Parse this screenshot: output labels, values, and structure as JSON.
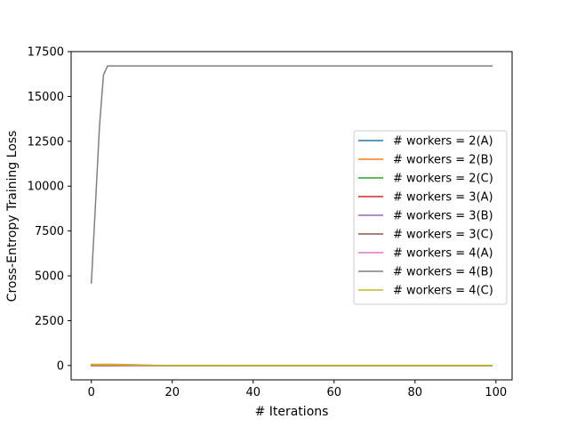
{
  "chart_data": {
    "type": "line",
    "xlabel": "# Iterations",
    "ylabel": "Cross-Entropy Training Loss",
    "xlim": [
      -5,
      104
    ],
    "ylim": [
      -800,
      17500
    ],
    "xticks": [
      0,
      20,
      40,
      60,
      80,
      100
    ],
    "yticks": [
      0,
      2500,
      5000,
      7500,
      10000,
      12500,
      15000,
      17500
    ],
    "grid": false,
    "legend_position": "center-right",
    "x_range": [
      0,
      99
    ],
    "series": [
      {
        "name": "# workers = 2(A)",
        "color": "#1f77b4",
        "values_description": "flat near zero",
        "points": [
          [
            0,
            5
          ],
          [
            10,
            3
          ],
          [
            20,
            2
          ],
          [
            99,
            2
          ]
        ]
      },
      {
        "name": "# workers = 2(B)",
        "color": "#ff7f0e",
        "values_description": "small initial values decaying to near zero",
        "points": [
          [
            0,
            60
          ],
          [
            5,
            70
          ],
          [
            10,
            50
          ],
          [
            15,
            10
          ],
          [
            20,
            5
          ],
          [
            99,
            5
          ]
        ]
      },
      {
        "name": "# workers = 2(C)",
        "color": "#2ca02c",
        "points": [
          [
            0,
            10
          ],
          [
            10,
            5
          ],
          [
            99,
            3
          ]
        ]
      },
      {
        "name": "# workers = 3(A)",
        "color": "#d62728",
        "points": [
          [
            0,
            8
          ],
          [
            10,
            4
          ],
          [
            99,
            2
          ]
        ]
      },
      {
        "name": "# workers = 3(B)",
        "color": "#9467bd",
        "points": [
          [
            0,
            6
          ],
          [
            10,
            3
          ],
          [
            99,
            2
          ]
        ]
      },
      {
        "name": "# workers = 3(C)",
        "color": "#8c564b",
        "points": [
          [
            0,
            -20
          ],
          [
            10,
            -15
          ],
          [
            99,
            -15
          ]
        ]
      },
      {
        "name": "# workers = 4(A)",
        "color": "#e377c2",
        "points": [
          [
            0,
            4
          ],
          [
            10,
            2
          ],
          [
            99,
            1
          ]
        ]
      },
      {
        "name": "# workers = 4(B)",
        "color": "#7f7f7f",
        "points": [
          [
            0,
            4600
          ],
          [
            1,
            8900
          ],
          [
            2,
            13300
          ],
          [
            3,
            16200
          ],
          [
            4,
            16700
          ],
          [
            10,
            16700
          ],
          [
            99,
            16700
          ]
        ]
      },
      {
        "name": "# workers = 4(C)",
        "color": "#bcbd22",
        "points": [
          [
            0,
            30
          ],
          [
            5,
            40
          ],
          [
            10,
            35
          ],
          [
            15,
            10
          ],
          [
            20,
            5
          ],
          [
            99,
            5
          ]
        ]
      }
    ]
  }
}
